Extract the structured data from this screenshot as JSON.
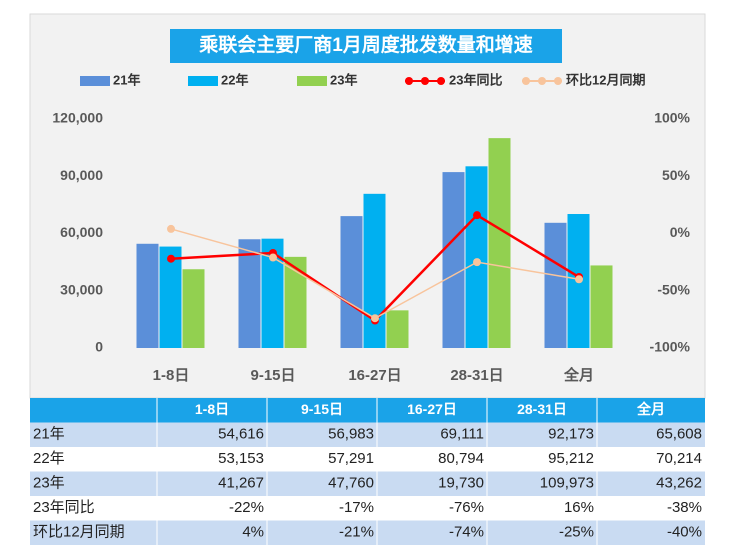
{
  "chart_data": {
    "type": "bar",
    "title": "乘联会主要厂商1月周度批发数量和增速",
    "categories": [
      "1-8日",
      "9-15日",
      "16-27日",
      "28-31日",
      "全月"
    ],
    "series": [
      {
        "name": "21年",
        "type": "bar",
        "color": "#5b8fd9",
        "values": [
          54616,
          56983,
          69111,
          92173,
          65608
        ],
        "value_labels": [
          "54,616",
          "56,983",
          "69,111",
          "92,173",
          "65,608"
        ]
      },
      {
        "name": "22年",
        "type": "bar",
        "color": "#00b0f0",
        "values": [
          53153,
          57291,
          80794,
          95212,
          70214
        ],
        "value_labels": [
          "53,153",
          "57,291",
          "80,794",
          "95,212",
          "70,214"
        ]
      },
      {
        "name": "23年",
        "type": "bar",
        "color": "#92d050",
        "values": [
          41267,
          47760,
          19730,
          109973,
          43262
        ],
        "value_labels": [
          "41,267",
          "47,760",
          "19,730",
          "109,973",
          "43,262"
        ]
      },
      {
        "name": "23年同比",
        "type": "line",
        "axis": "y2",
        "color": "#ff0000",
        "values": [
          -22,
          -17,
          -76,
          16,
          -38
        ],
        "value_labels": [
          "-22%",
          "-17%",
          "-76%",
          "16%",
          "-38%"
        ]
      },
      {
        "name": "环比12月同期",
        "type": "line",
        "axis": "y2",
        "color": "#f8c49c",
        "values": [
          4,
          -21,
          -74,
          -25,
          -40
        ],
        "value_labels": [
          "4%",
          "-21%",
          "-74%",
          "-25%",
          "-40%"
        ]
      }
    ],
    "ylim": [
      0,
      120000
    ],
    "yticks": [
      0,
      {
        "value": 30000,
        "label": "30,000"
      },
      {
        "value": 60000,
        "label": "60,000"
      },
      {
        "value": 90000,
        "label": "90,000"
      },
      {
        "value": 120000,
        "label": "120,000"
      }
    ],
    "y2lim": [
      -100,
      100
    ],
    "y2ticks": [
      {
        "value": -100,
        "label": "-100%"
      },
      {
        "value": -50,
        "label": "-50%"
      },
      {
        "value": 0,
        "label": "0%"
      },
      {
        "value": 50,
        "label": "50%"
      },
      {
        "value": 100,
        "label": "100%"
      }
    ]
  }
}
